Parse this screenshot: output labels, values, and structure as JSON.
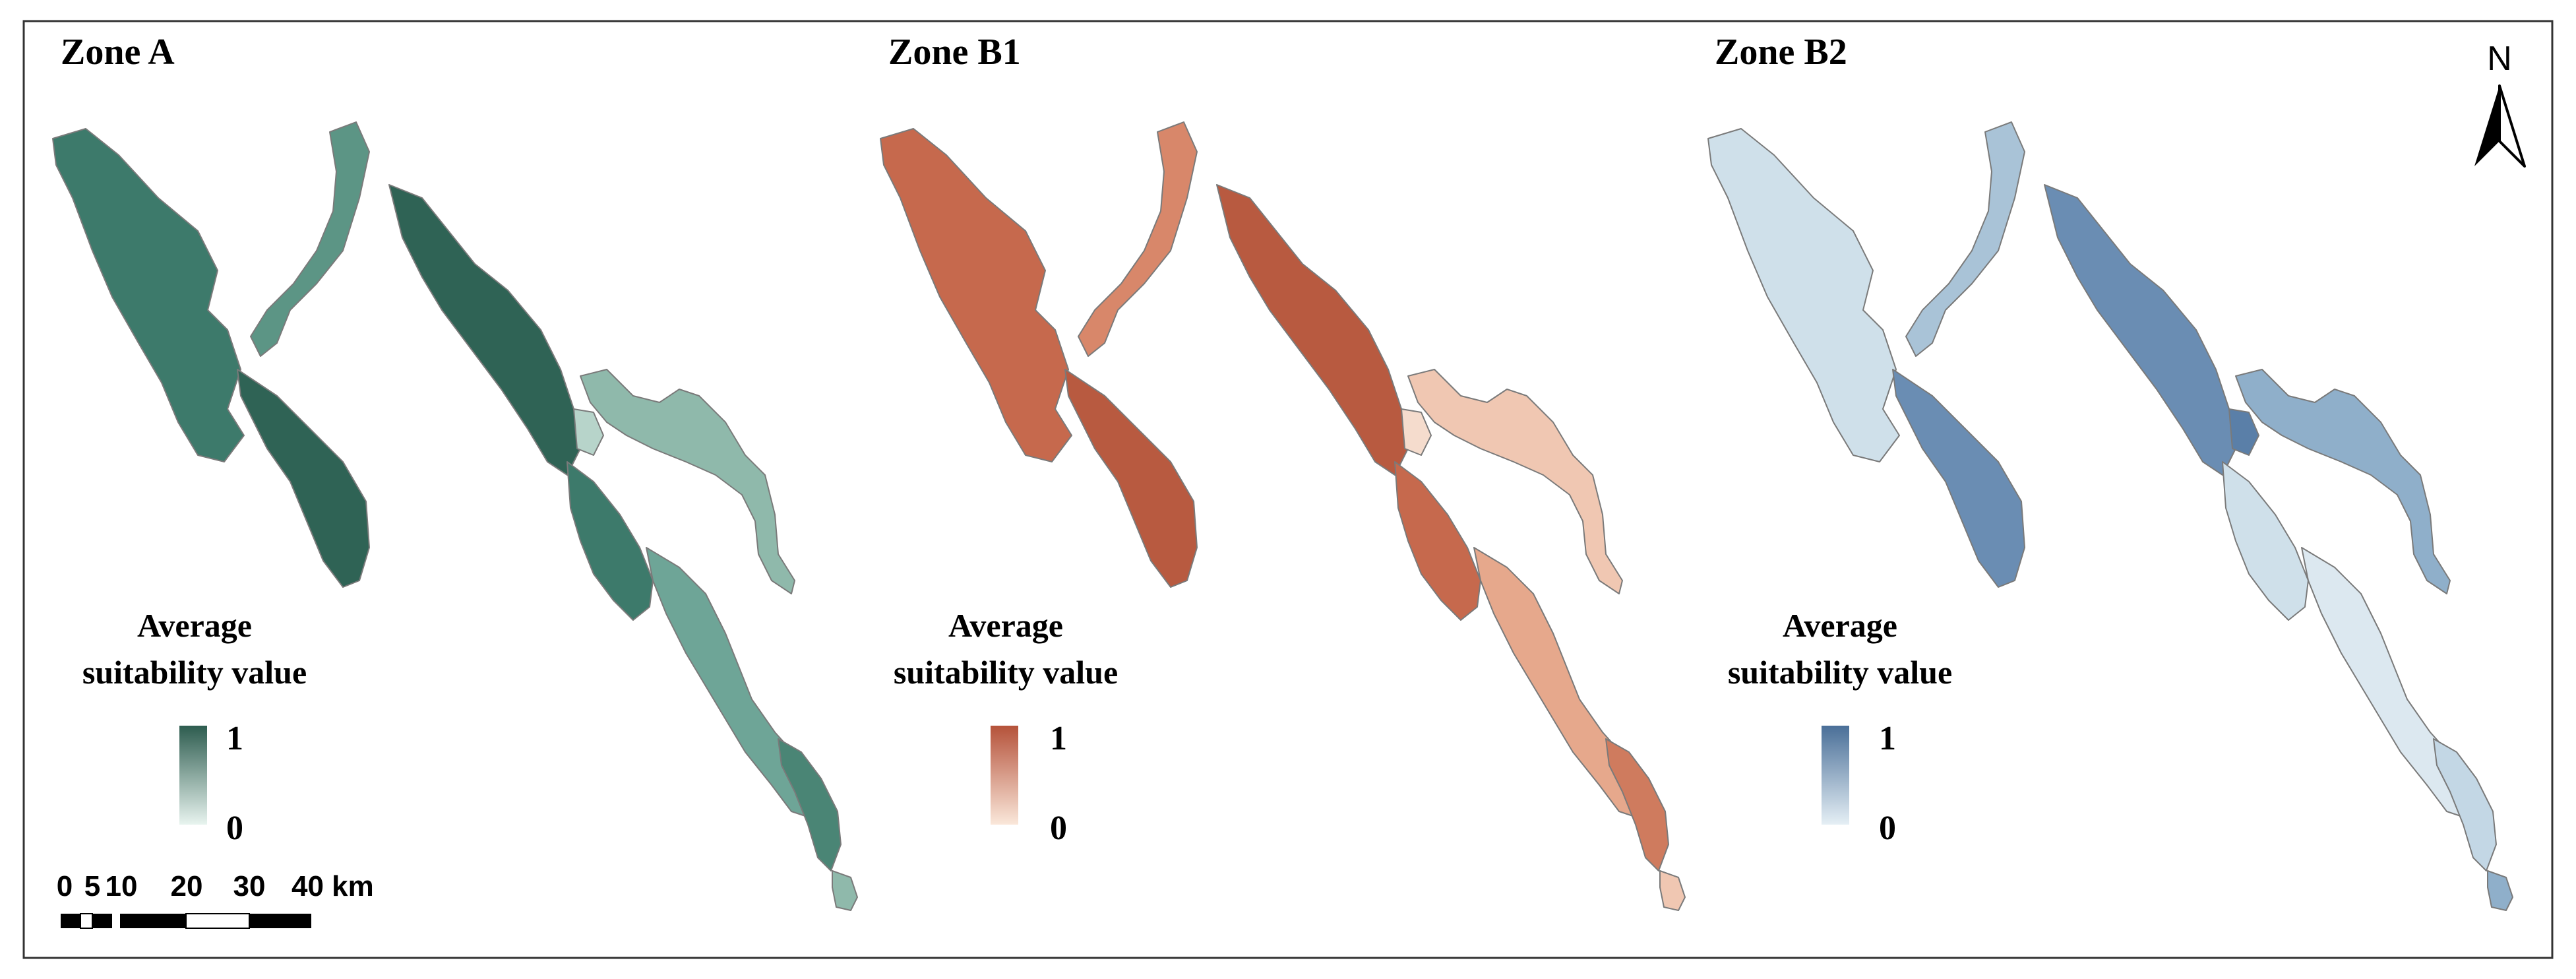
{
  "panels": [
    {
      "title": "Zone A",
      "ramp_high_color": "#2d5c4f",
      "ramp_low_color": "#e8f4ef",
      "region_colors": [
        "#3d7a6b",
        "#5c9585",
        "#2f6355",
        "#4a8575",
        "#8fb9ab",
        "#6ea597",
        "#b7d4ca"
      ]
    },
    {
      "title": "Zone B1",
      "ramp_high_color": "#b5523a",
      "ramp_low_color": "#fae7da",
      "region_colors": [
        "#c6694d",
        "#d8876a",
        "#b85a40",
        "#cf7b5e",
        "#f0c7b2",
        "#e6a88c",
        "#f5dccd"
      ]
    },
    {
      "title": "Zone B2",
      "ramp_high_color": "#4a6f98",
      "ramp_low_color": "#e5eff5",
      "region_colors": [
        "#cfe0ea",
        "#a9c3d7",
        "#6a8db3",
        "#c3d7e5",
        "#8fafca",
        "#dce8f0",
        "#5a7fa8"
      ]
    }
  ],
  "legend": {
    "title_line1": "Average",
    "title_line2": "suitability value",
    "max_label": "1",
    "min_label": "0"
  },
  "scale_bar": {
    "labels": [
      "0",
      "5",
      "10",
      "20",
      "30",
      "40 km"
    ]
  },
  "north_arrow": {
    "label": "N"
  },
  "colors": {
    "frame": "#333333",
    "outline": "#7a7a7a",
    "text": "#000000"
  }
}
